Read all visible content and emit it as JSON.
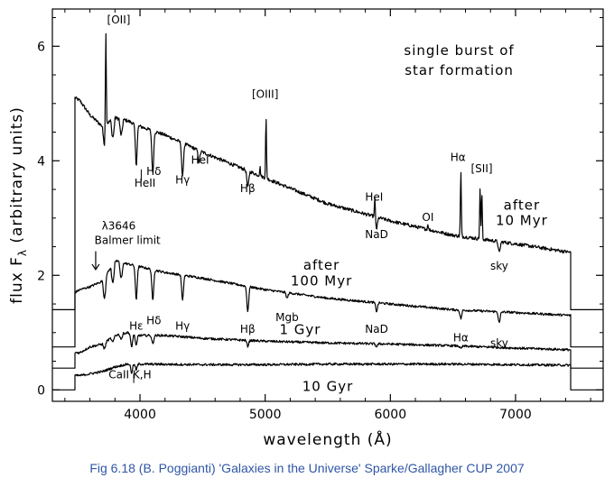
{
  "caption": "Fig 6.18 (B. Poggianti) 'Galaxies in the Universe' Sparke/Gallagher CUP 2007",
  "chart_data": {
    "type": "line",
    "title": "",
    "xlabel": "wavelength (Å)",
    "ylabel": "flux F",
    "ylabel_sub": "λ",
    "ylabel_suffix": " (arbitrary units)",
    "xlim": [
      3300,
      7700
    ],
    "ylim": [
      -0.2,
      6.65
    ],
    "xticks": [
      4000,
      5000,
      6000,
      7000
    ],
    "yticks": [
      0,
      2,
      4,
      6
    ],
    "grid": false,
    "legend": "none",
    "series": [
      {
        "name": "",
        "x": [
          3480,
          3520,
          3600,
          3700,
          3800,
          3900,
          4000,
          4200,
          4500,
          5000,
          5500,
          6000,
          6500,
          7000,
          7440
        ],
        "y": [
          5.1,
          5.05,
          4.8,
          4.6,
          4.75,
          4.7,
          4.6,
          4.45,
          4.15,
          3.7,
          3.25,
          2.95,
          2.7,
          2.55,
          2.4
        ],
        "lines": [
          {
            "x": 3727,
            "dy": 1.8
          },
          {
            "x": 3970,
            "dy": -0.7
          },
          {
            "x": 4102,
            "dy": -0.75
          },
          {
            "x": 4340,
            "dy": -0.6
          },
          {
            "x": 4471,
            "dy": -0.2
          },
          {
            "x": 4861,
            "dy": -0.3
          },
          {
            "x": 4959,
            "dy": 0.15
          },
          {
            "x": 5007,
            "dy": 1.05
          },
          {
            "x": 5876,
            "dy": 0.35
          },
          {
            "x": 5890,
            "dy": -0.2
          },
          {
            "x": 6300,
            "dy": 0.1
          },
          {
            "x": 6563,
            "dy": 1.15
          },
          {
            "x": 6717,
            "dy": 0.9
          },
          {
            "x": 6731,
            "dy": 0.8
          },
          {
            "x": 6870,
            "dy": -0.2
          }
        ]
      },
      {
        "name": "",
        "x": [
          3480,
          3520,
          3600,
          3700,
          3800,
          3900,
          4000,
          4200,
          4500,
          5000,
          5500,
          6000,
          6500,
          7000,
          7440
        ],
        "y": [
          1.7,
          1.75,
          1.8,
          1.9,
          2.25,
          2.2,
          2.15,
          2.05,
          1.95,
          1.75,
          1.6,
          1.5,
          1.4,
          1.35,
          1.3
        ],
        "lines": [
          {
            "x": 3970,
            "dy": -0.6
          },
          {
            "x": 4102,
            "dy": -0.55
          },
          {
            "x": 4340,
            "dy": -0.45
          },
          {
            "x": 4861,
            "dy": -0.45
          },
          {
            "x": 5175,
            "dy": -0.1
          },
          {
            "x": 5890,
            "dy": -0.15
          },
          {
            "x": 6563,
            "dy": -0.15
          },
          {
            "x": 6870,
            "dy": -0.2
          }
        ]
      },
      {
        "name": "",
        "x": [
          3480,
          3520,
          3600,
          3700,
          3800,
          3900,
          4000,
          4200,
          4500,
          5000,
          5500,
          6000,
          6500,
          7000,
          7440
        ],
        "y": [
          0.65,
          0.65,
          0.75,
          0.8,
          0.95,
          1.0,
          0.95,
          0.95,
          0.9,
          0.85,
          0.82,
          0.8,
          0.77,
          0.73,
          0.7
        ],
        "lines": [
          {
            "x": 3933,
            "dy": -0.25
          },
          {
            "x": 3970,
            "dy": -0.2
          },
          {
            "x": 4102,
            "dy": -0.15
          },
          {
            "x": 4861,
            "dy": -0.1
          },
          {
            "x": 5890,
            "dy": -0.05
          },
          {
            "x": 6563,
            "dy": -0.05
          }
        ]
      },
      {
        "name": "",
        "x": [
          3480,
          3520,
          3600,
          3700,
          3800,
          3900,
          4000,
          4500,
          5000,
          5500,
          6000,
          6500,
          7000,
          7440
        ],
        "y": [
          0.25,
          0.25,
          0.28,
          0.32,
          0.4,
          0.45,
          0.45,
          0.44,
          0.44,
          0.45,
          0.45,
          0.45,
          0.44,
          0.43
        ],
        "lines": [
          {
            "x": 3933,
            "dy": -0.15
          },
          {
            "x": 3970,
            "dy": -0.1
          }
        ]
      }
    ],
    "annotations": [
      {
        "text": "single burst of",
        "x": 6550,
        "y": 5.85,
        "size": "big"
      },
      {
        "text": "star formation",
        "x": 6550,
        "y": 5.5,
        "size": "big"
      },
      {
        "text": "[OII]",
        "x": 3830,
        "y": 6.4,
        "size": "small"
      },
      {
        "text": "HeII",
        "x": 4040,
        "y": 3.55,
        "size": "small"
      },
      {
        "text": "Hδ",
        "x": 4110,
        "y": 3.75,
        "size": "small"
      },
      {
        "text": "Hγ",
        "x": 4340,
        "y": 3.6,
        "size": "small"
      },
      {
        "text": "HeI",
        "x": 4480,
        "y": 3.95,
        "size": "small"
      },
      {
        "text": "Hβ",
        "x": 4860,
        "y": 3.45,
        "size": "small"
      },
      {
        "text": "[OIII]",
        "x": 5000,
        "y": 5.1,
        "size": "small"
      },
      {
        "text": "HeI",
        "x": 5870,
        "y": 3.3,
        "size": "small"
      },
      {
        "text": "NaD",
        "x": 5890,
        "y": 2.65,
        "size": "small"
      },
      {
        "text": "OI",
        "x": 6300,
        "y": 2.95,
        "size": "small"
      },
      {
        "text": "Hα",
        "x": 6540,
        "y": 4.0,
        "size": "small"
      },
      {
        "text": "[SII]",
        "x": 6730,
        "y": 3.8,
        "size": "small"
      },
      {
        "text": "after",
        "x": 7050,
        "y": 3.15,
        "size": "big"
      },
      {
        "text": "10 Myr",
        "x": 7050,
        "y": 2.88,
        "size": "big"
      },
      {
        "text": "sky",
        "x": 6870,
        "y": 2.1,
        "size": "small"
      },
      {
        "text": "λ3646",
        "x": 3830,
        "y": 2.8,
        "size": "small"
      },
      {
        "text": "Balmer limit",
        "x": 3900,
        "y": 2.55,
        "size": "small"
      },
      {
        "text": "after",
        "x": 5450,
        "y": 2.1,
        "size": "big"
      },
      {
        "text": "100 Myr",
        "x": 5450,
        "y": 1.82,
        "size": "big"
      },
      {
        "text": "Hε",
        "x": 3970,
        "y": 1.05,
        "size": "small"
      },
      {
        "text": "Hδ",
        "x": 4110,
        "y": 1.15,
        "size": "small"
      },
      {
        "text": "Hγ",
        "x": 4340,
        "y": 1.05,
        "size": "small"
      },
      {
        "text": "Hβ",
        "x": 4860,
        "y": 1.0,
        "size": "small"
      },
      {
        "text": "Mgb",
        "x": 5175,
        "y": 1.2,
        "size": "small"
      },
      {
        "text": "NaD",
        "x": 5890,
        "y": 1.0,
        "size": "small"
      },
      {
        "text": "Hα",
        "x": 6563,
        "y": 0.85,
        "size": "small"
      },
      {
        "text": "sky",
        "x": 6870,
        "y": 0.75,
        "size": "small"
      },
      {
        "text": "1 Gyr",
        "x": 5280,
        "y": 0.97,
        "size": "big"
      },
      {
        "text": "CaII  K,H",
        "x": 3920,
        "y": 0.2,
        "size": "small"
      },
      {
        "text": "10 Gyr",
        "x": 5500,
        "y": -0.02,
        "size": "big"
      }
    ]
  }
}
